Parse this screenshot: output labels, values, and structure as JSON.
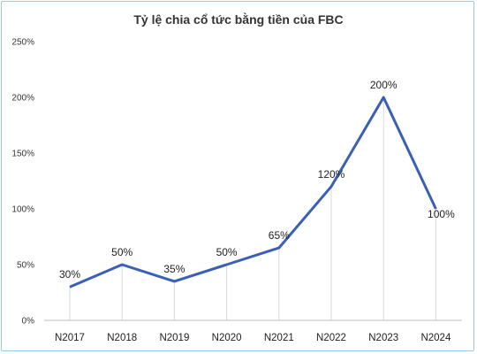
{
  "chart_data": {
    "type": "line",
    "title": "Tỷ lệ chia cổ tức bằng tiền của FBC",
    "categories": [
      "N2017",
      "N2018",
      "N2019",
      "N2020",
      "N2021",
      "N2022",
      "N2023",
      "N2024"
    ],
    "values": [
      30,
      50,
      35,
      50,
      65,
      120,
      200,
      100
    ],
    "data_labels": [
      "30%",
      "50%",
      "35%",
      "50%",
      "65%",
      "120%",
      "200%",
      "100%"
    ],
    "yticks": [
      "0%",
      "50%",
      "100%",
      "150%",
      "200%",
      "250%"
    ],
    "ylim": [
      0,
      250
    ],
    "grid": "vertical drop lines",
    "line_color": "#3a5fb5"
  }
}
